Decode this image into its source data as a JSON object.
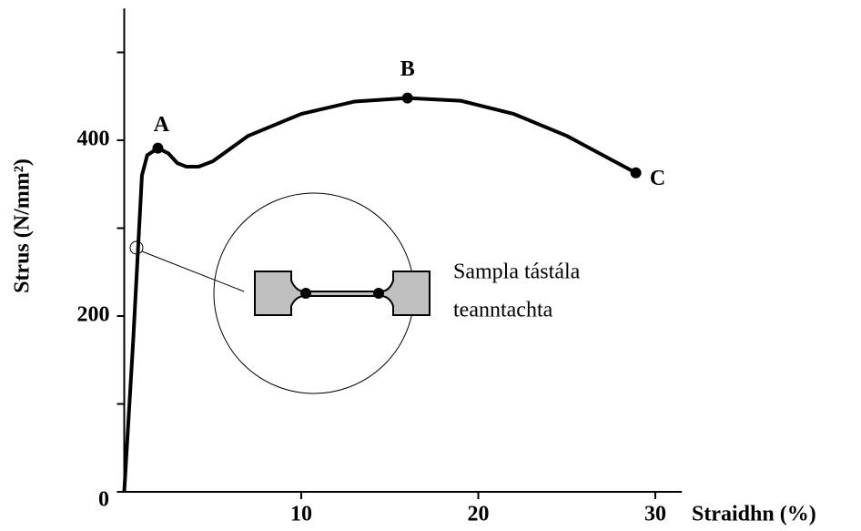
{
  "chart_data": {
    "type": "line",
    "xlabel": "Straidhn (%)",
    "ylabel": "Strus (N/mm²)",
    "xlim": [
      0,
      31.5
    ],
    "ylim": [
      0,
      550
    ],
    "xticks": [
      10,
      20,
      30
    ],
    "yticks": [
      0,
      200,
      400
    ],
    "yminorticks": [
      100,
      300,
      500
    ],
    "series": [
      {
        "color": "#000000",
        "x": [
          0,
          0.5,
          1.0,
          1.3,
          1.9,
          2.5,
          3.0,
          3.5,
          4.2,
          5.0,
          7,
          10,
          13,
          16,
          19,
          22,
          25,
          28.9
        ],
        "values": [
          0,
          170,
          360,
          383,
          391,
          385,
          374,
          370,
          370,
          376,
          405,
          430,
          444,
          448,
          445,
          430,
          405,
          363
        ]
      }
    ],
    "points": [
      {
        "label": "A",
        "x": 1.9,
        "y": 391
      },
      {
        "label": "B",
        "x": 16,
        "y": 448
      },
      {
        "label": "C",
        "x": 28.9,
        "y": 363
      }
    ],
    "inset_text": [
      "Sampla tástála",
      "teanntachta"
    ]
  }
}
